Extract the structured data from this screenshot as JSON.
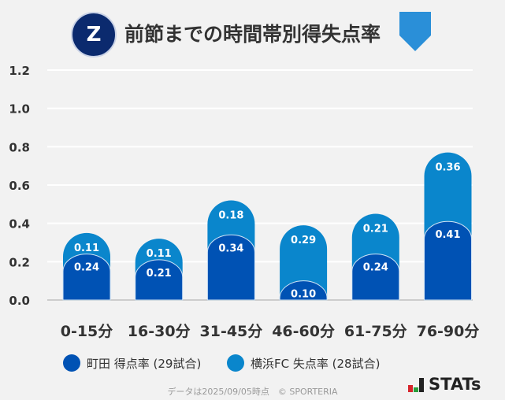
{
  "title": "前節までの時間帯別得失点率",
  "chart_data": {
    "type": "bar",
    "stacked": true,
    "categories": [
      "0-15分",
      "16-30分",
      "31-45分",
      "46-60分",
      "61-75分",
      "76-90分"
    ],
    "series": [
      {
        "name": "町田 得点率 (29試合)",
        "values": [
          0.24,
          0.21,
          0.34,
          0.1,
          0.24,
          0.41
        ],
        "color": "#0052b4"
      },
      {
        "name": "横浜FC 失点率 (28試合)",
        "values": [
          0.11,
          0.11,
          0.18,
          0.29,
          0.21,
          0.36
        ],
        "color": "#0a86cc"
      }
    ],
    "ylim": [
      0,
      1.2
    ],
    "yticks": [
      "0.0",
      "0.2",
      "0.4",
      "0.6",
      "0.8",
      "1.0",
      "1.2"
    ],
    "grid": true,
    "legend": "bottom"
  },
  "footer": "データは2025/09/05時点　© SPORTERIA",
  "brand": "STATs",
  "logos": {
    "left": "ZELVIA",
    "right": "YOKOHAMA FC"
  }
}
